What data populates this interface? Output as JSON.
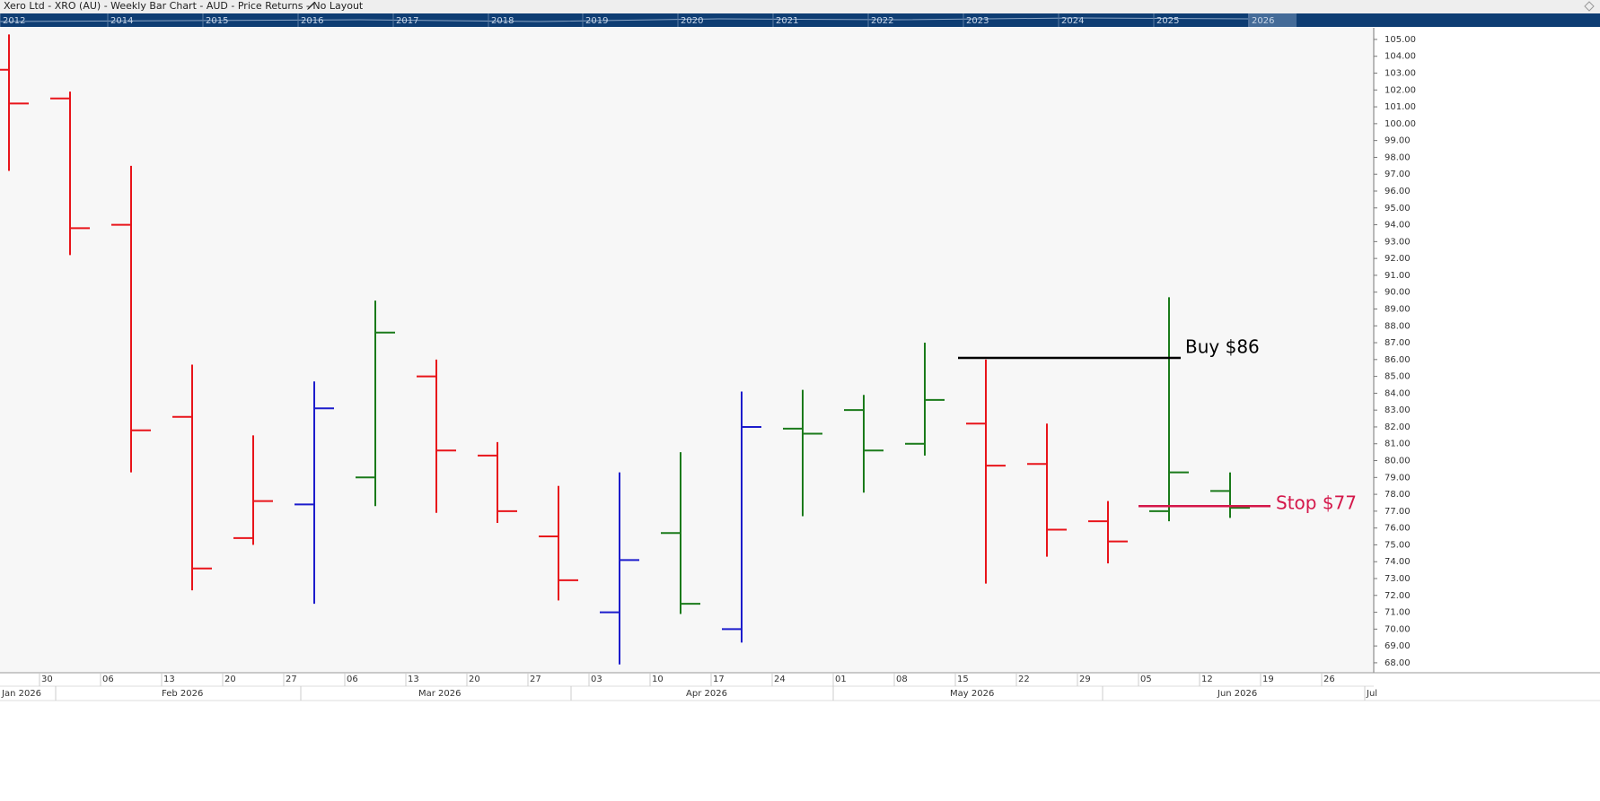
{
  "header": {
    "title": "Xero Ltd - XRO (AU) - Weekly Bar Chart - AUD - Price Returns - No Layout"
  },
  "navigator": {
    "years": [
      "2012",
      "2014",
      "2015",
      "2016",
      "2017",
      "2018",
      "2019",
      "2020",
      "2021",
      "2022",
      "2023",
      "2024",
      "2025",
      "2026"
    ]
  },
  "chart_data": {
    "type": "ohlc",
    "open": [
      103.2,
      101.5,
      94.0,
      82.6,
      75.4,
      77.4,
      79.0,
      85.0,
      80.3,
      75.5,
      71.0,
      75.7,
      70.0,
      81.9,
      83.0,
      81.0,
      82.2,
      79.8,
      76.4,
      77.0,
      78.2
    ],
    "high": [
      105.3,
      101.9,
      97.5,
      85.7,
      81.5,
      84.7,
      89.5,
      86.0,
      81.1,
      78.5,
      79.3,
      80.5,
      84.1,
      84.2,
      83.9,
      87.0,
      86.0,
      82.2,
      77.6,
      89.7,
      79.3
    ],
    "low": [
      97.2,
      92.2,
      79.3,
      72.3,
      75.0,
      71.5,
      77.3,
      76.9,
      76.3,
      71.7,
      67.9,
      70.9,
      69.2,
      76.7,
      78.1,
      80.3,
      72.7,
      74.3,
      73.9,
      76.4,
      76.6
    ],
    "close": [
      101.2,
      93.8,
      81.8,
      73.6,
      77.6,
      83.1,
      87.6,
      80.6,
      77.0,
      72.9,
      74.1,
      71.5,
      82.0,
      81.6,
      80.6,
      83.6,
      79.7,
      75.9,
      75.2,
      79.3,
      77.2
    ],
    "colors": [
      "#e8141a",
      "#e8141a",
      "#e8141a",
      "#e8141a",
      "#e8141a",
      "#1c1ccc",
      "#1a7a1a",
      "#e8141a",
      "#e8141a",
      "#e8141a",
      "#1c1ccc",
      "#1a7a1a",
      "#1c1ccc",
      "#1a7a1a",
      "#1a7a1a",
      "#1a7a1a",
      "#e8141a",
      "#e8141a",
      "#e8141a",
      "#1a7a1a",
      "#1a7a1a"
    ],
    "ylim": [
      67.41,
      105.69
    ],
    "yticks": [
      {
        "value": 68,
        "label": "68.00"
      },
      {
        "value": 69,
        "label": "69.00"
      },
      {
        "value": 70,
        "label": "70.00"
      },
      {
        "value": 71,
        "label": "71.00"
      },
      {
        "value": 72,
        "label": "72.00"
      },
      {
        "value": 73,
        "label": "73.00"
      },
      {
        "value": 74,
        "label": "74.00"
      },
      {
        "value": 75,
        "label": "75.00"
      },
      {
        "value": 76,
        "label": "76.00"
      },
      {
        "value": 77,
        "label": "77.00"
      },
      {
        "value": 78,
        "label": "78.00"
      },
      {
        "value": 79,
        "label": "79.00"
      },
      {
        "value": 80,
        "label": "80.00"
      },
      {
        "value": 81,
        "label": "81.00"
      },
      {
        "value": 82,
        "label": "82.00"
      },
      {
        "value": 83,
        "label": "83.00"
      },
      {
        "value": 84,
        "label": "84.00"
      },
      {
        "value": 85,
        "label": "85.00"
      },
      {
        "value": 86,
        "label": "86.00"
      },
      {
        "value": 87,
        "label": "87.00"
      },
      {
        "value": 88,
        "label": "88.00"
      },
      {
        "value": 89,
        "label": "89.00"
      },
      {
        "value": 90,
        "label": "90.00"
      },
      {
        "value": 91,
        "label": "91.00"
      },
      {
        "value": 92,
        "label": "92.00"
      },
      {
        "value": 93,
        "label": "93.00"
      },
      {
        "value": 94,
        "label": "94.00"
      },
      {
        "value": 95,
        "label": "95.00"
      },
      {
        "value": 96,
        "label": "96.00"
      },
      {
        "value": 97,
        "label": "97.00"
      },
      {
        "value": 98,
        "label": "98.00"
      },
      {
        "value": 99,
        "label": "99.00"
      },
      {
        "value": 100,
        "label": "100.00"
      },
      {
        "value": 101,
        "label": "101.00"
      },
      {
        "value": 102,
        "label": "102.00"
      },
      {
        "value": 103,
        "label": "103.00"
      },
      {
        "value": 104,
        "label": "104.00"
      },
      {
        "value": 105,
        "label": "105.00"
      }
    ],
    "x_labels": [
      "30",
      "06",
      "13",
      "20",
      "27",
      "06",
      "13",
      "20",
      "27",
      "03",
      "10",
      "17",
      "24",
      "01",
      "08",
      "15",
      "22",
      "29",
      "05",
      "12",
      "19",
      "26"
    ],
    "month_labels": [
      "Jan 2026",
      "Feb 2026",
      "Mar 2026",
      "Apr 2026",
      "May 2026",
      "Jun 2026",
      "Jul"
    ],
    "annotations": [
      {
        "text": "Buy $86",
        "value": 86.1,
        "color": "#000000"
      },
      {
        "text": "Stop $77",
        "value": 77.3,
        "color": "#d4174a"
      }
    ]
  }
}
